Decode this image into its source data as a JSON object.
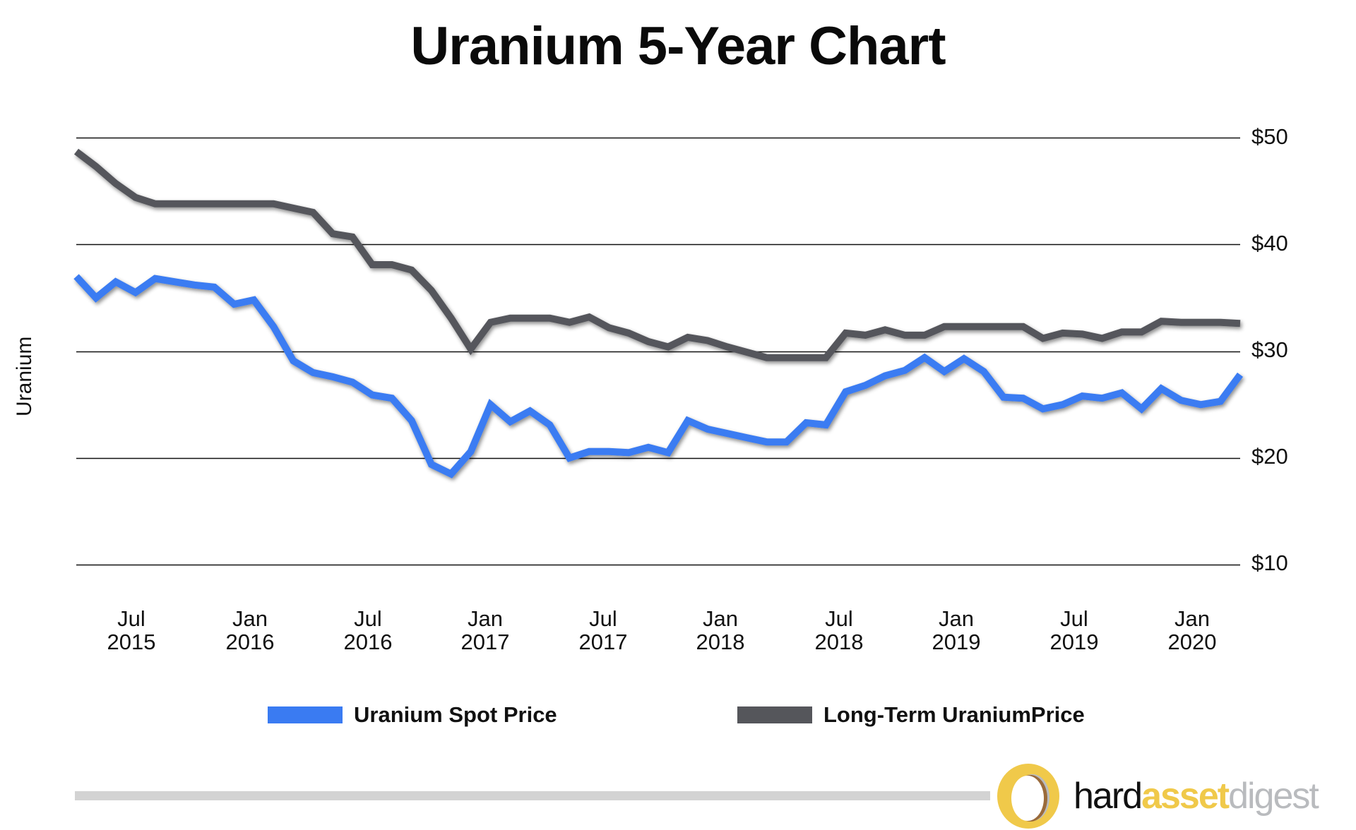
{
  "title": "Uranium 5-Year Chart",
  "y_axis_label": "Uranium",
  "y_ticks": [
    "$50",
    "$40",
    "$30",
    "$20",
    "$10"
  ],
  "x_ticks": [
    {
      "month": "Jul",
      "year": "2015"
    },
    {
      "month": "Jan",
      "year": "2016"
    },
    {
      "month": "Jul",
      "year": "2016"
    },
    {
      "month": "Jan",
      "year": "2017"
    },
    {
      "month": "Jul",
      "year": "2017"
    },
    {
      "month": "Jan",
      "year": "2018"
    },
    {
      "month": "Jul",
      "year": "2018"
    },
    {
      "month": "Jan",
      "year": "2019"
    },
    {
      "month": "Jul",
      "year": "2019"
    },
    {
      "month": "Jan",
      "year": "2020"
    }
  ],
  "legend": [
    {
      "label": "Uranium Spot Price",
      "color": "#3a7bf2"
    },
    {
      "label": "Long-Term UraniumPrice",
      "color": "#55565b"
    }
  ],
  "logo": {
    "part1": "hard",
    "part2": "asset",
    "part3": "digest"
  },
  "colors": {
    "spot": "#3a7bf2",
    "long_term": "#55565b",
    "gridline": "#111111",
    "footer_bar": "#d3d3d3",
    "logo_gold": "#f0c94a",
    "logo_gray": "#b9bbbe",
    "logo_brown": "#9a6a3a"
  },
  "chart_data": {
    "type": "line",
    "title": "Uranium 5-Year Chart",
    "xlabel": "",
    "ylabel": "Uranium",
    "ylim": [
      10,
      50
    ],
    "y_ticks": [
      10,
      20,
      30,
      40,
      50
    ],
    "y_tick_labels": [
      "$10",
      "$20",
      "$30",
      "$40",
      "$50"
    ],
    "y_axis_position": "right",
    "grid": true,
    "legend_position": "bottom",
    "x_tick_labels": [
      "Jul 2015",
      "Jan 2016",
      "Jul 2016",
      "Jan 2017",
      "Jul 2017",
      "Jan 2018",
      "Jul 2018",
      "Jan 2019",
      "Jul 2019",
      "Jan 2020"
    ],
    "x": [
      "2015-04",
      "2015-05",
      "2015-06",
      "2015-07",
      "2015-08",
      "2015-09",
      "2015-10",
      "2015-11",
      "2015-12",
      "2016-01",
      "2016-02",
      "2016-03",
      "2016-04",
      "2016-05",
      "2016-06",
      "2016-07",
      "2016-08",
      "2016-09",
      "2016-10",
      "2016-11",
      "2016-12",
      "2017-01",
      "2017-02",
      "2017-03",
      "2017-04",
      "2017-05",
      "2017-06",
      "2017-07",
      "2017-08",
      "2017-09",
      "2017-10",
      "2017-11",
      "2017-12",
      "2018-01",
      "2018-02",
      "2018-03",
      "2018-04",
      "2018-05",
      "2018-06",
      "2018-07",
      "2018-08",
      "2018-09",
      "2018-10",
      "2018-11",
      "2018-12",
      "2019-01",
      "2019-02",
      "2019-03",
      "2019-04",
      "2019-05",
      "2019-06",
      "2019-07",
      "2019-08",
      "2019-09",
      "2019-10",
      "2019-11",
      "2019-12",
      "2020-01",
      "2020-02",
      "2020-03"
    ],
    "series": [
      {
        "name": "Uranium Spot Price",
        "color": "#3a7bf2",
        "values": [
          37.0,
          35.0,
          36.5,
          35.5,
          36.8,
          36.5,
          36.2,
          36.0,
          34.4,
          34.8,
          32.3,
          29.1,
          28.0,
          27.6,
          27.1,
          25.9,
          25.6,
          23.5,
          19.4,
          18.5,
          20.6,
          25.0,
          23.4,
          24.4,
          23.1,
          20.0,
          20.6,
          20.6,
          20.5,
          21.0,
          20.5,
          23.5,
          22.7,
          22.3,
          21.9,
          21.5,
          21.5,
          23.3,
          23.1,
          26.2,
          26.8,
          27.7,
          28.2,
          29.4,
          28.1,
          29.3,
          28.1,
          25.7,
          25.6,
          24.6,
          25.0,
          25.8,
          25.6,
          26.1,
          24.6,
          26.5,
          25.4,
          25.0,
          25.3,
          27.8
        ]
      },
      {
        "name": "Long-Term UraniumPrice",
        "color": "#55565b",
        "values": [
          48.7,
          47.3,
          45.7,
          44.4,
          43.8,
          43.8,
          43.8,
          43.8,
          43.8,
          43.8,
          43.8,
          43.4,
          43.0,
          41.0,
          40.7,
          38.1,
          38.1,
          37.6,
          35.7,
          33.1,
          30.2,
          32.7,
          33.1,
          33.1,
          33.1,
          32.7,
          33.2,
          32.2,
          31.7,
          30.9,
          30.4,
          31.3,
          31.0,
          30.4,
          29.9,
          29.4,
          29.4,
          29.4,
          29.4,
          31.7,
          31.5,
          32.0,
          31.5,
          31.5,
          32.3,
          32.3,
          32.3,
          32.3,
          32.3,
          31.2,
          31.7,
          31.6,
          31.2,
          31.8,
          31.8,
          32.8,
          32.7,
          32.7,
          32.7,
          32.6
        ]
      }
    ]
  }
}
